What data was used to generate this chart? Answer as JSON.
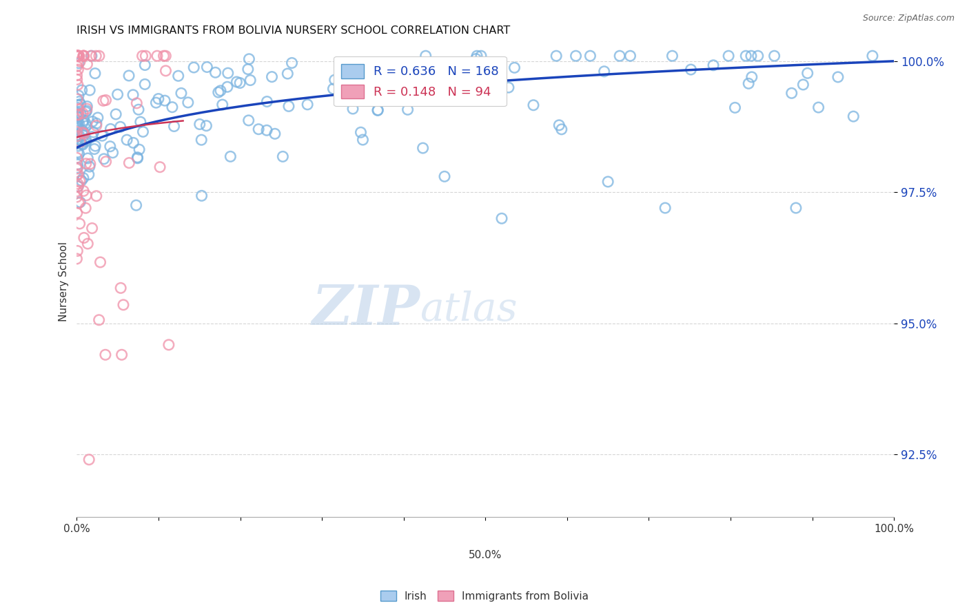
{
  "title": "IRISH VS IMMIGRANTS FROM BOLIVIA NURSERY SCHOOL CORRELATION CHART",
  "source": "Source: ZipAtlas.com",
  "ylabel": "Nursery School",
  "xlim": [
    0.0,
    1.0
  ],
  "ylim": [
    0.913,
    1.003
  ],
  "yticks": [
    0.925,
    0.95,
    0.975,
    1.0
  ],
  "ytick_labels": [
    "92.5%",
    "95.0%",
    "97.5%",
    "100.0%"
  ],
  "xticks": [
    0.0,
    0.1,
    0.2,
    0.3,
    0.4,
    0.5,
    0.6,
    0.7,
    0.8,
    0.9,
    1.0
  ],
  "xtick_labels": [
    "0.0%",
    "",
    "",
    "",
    "",
    "",
    "",
    "",
    "",
    "",
    "100.0%"
  ],
  "blue_color": "#7ab3e0",
  "pink_color": "#f090a8",
  "blue_edge_color": "#5599cc",
  "pink_edge_color": "#e06080",
  "blue_line_color": "#1a44bb",
  "pink_line_color": "#cc3355",
  "legend_blue_label": "Irish",
  "legend_pink_label": "Immigrants from Bolivia",
  "R_blue": 0.636,
  "N_blue": 168,
  "R_pink": 0.148,
  "N_pink": 94,
  "watermark_zip": "ZIP",
  "watermark_atlas": "atlas",
  "background_color": "#ffffff",
  "grid_color": "#cccccc",
  "marker_size": 110
}
